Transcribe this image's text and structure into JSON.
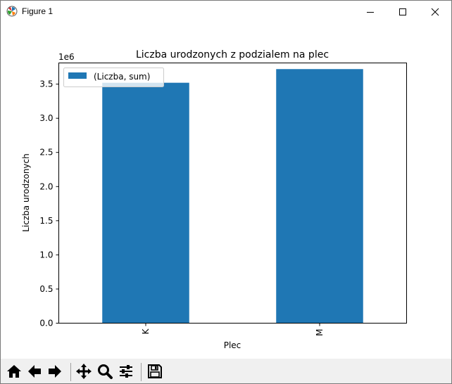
{
  "window": {
    "title": "Figure 1",
    "icons": [
      "matplotlib-logo-icon",
      "minimize-icon",
      "maximize-icon",
      "close-icon"
    ]
  },
  "toolbar": {
    "buttons": [
      "home-icon",
      "back-icon",
      "forward-icon",
      "pan-icon",
      "zoom-icon",
      "configure-subplots-icon",
      "save-icon"
    ]
  },
  "chart_data": {
    "type": "bar",
    "title": "Liczba urodzonych z podzialem na plec",
    "xlabel": "Plec",
    "ylabel": "Liczba urodzonych",
    "offset_label": "1e6",
    "categories": [
      "K",
      "M"
    ],
    "series": [
      {
        "name": "(Liczba, sum)",
        "values": [
          3.52,
          3.72
        ],
        "color": "#1f77b4"
      }
    ],
    "ylim": [
      0,
      3.81
    ],
    "yticks": [
      0.0,
      0.5,
      1.0,
      1.5,
      2.0,
      2.5,
      3.0,
      3.5
    ],
    "ytick_labels": [
      "0.0",
      "0.5",
      "1.0",
      "1.5",
      "2.0",
      "2.5",
      "3.0",
      "3.5"
    ],
    "legend_position": "top-left",
    "grid": false
  }
}
